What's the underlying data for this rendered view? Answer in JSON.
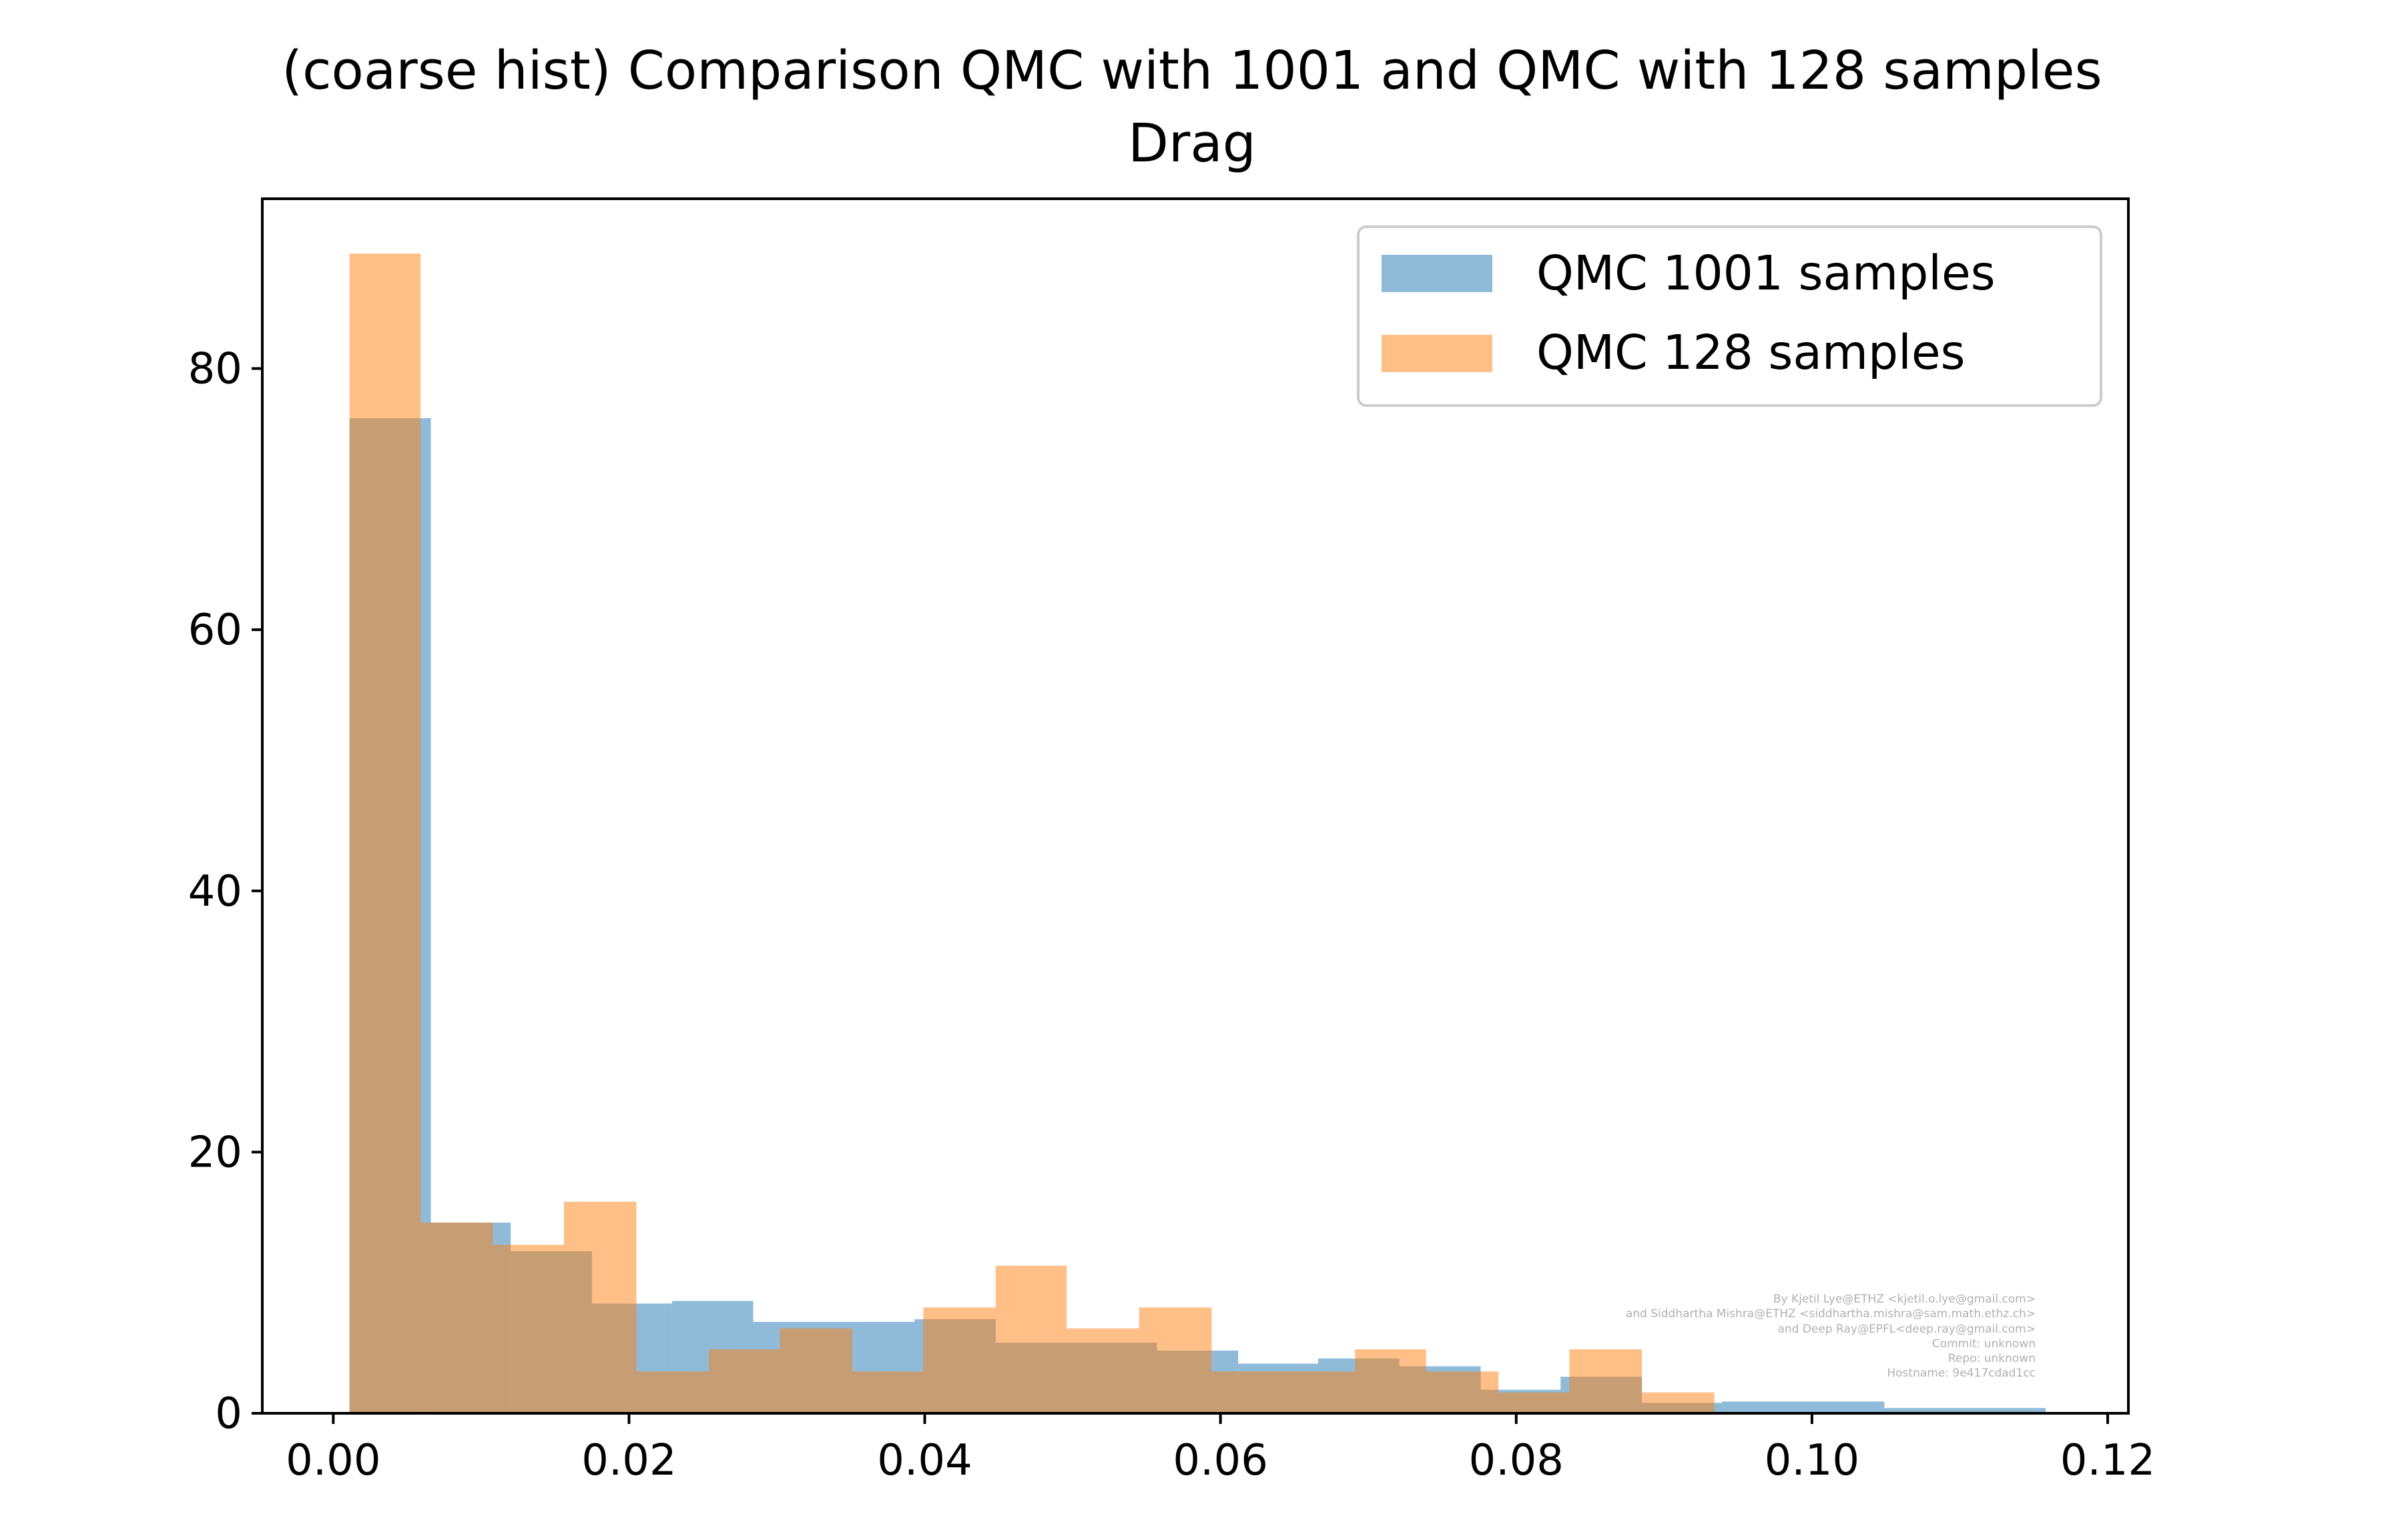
{
  "chart_data": {
    "type": "bar",
    "subtype": "overlaid-histogram",
    "title": "(coarse hist) Comparison QMC with 1001 and QMC with 128 samples",
    "subtitle": "Drag",
    "xlabel": "",
    "ylabel": "",
    "xlim": [
      -0.0048,
      0.1214
    ],
    "ylim": [
      0,
      93
    ],
    "xticks": [
      0.0,
      0.02,
      0.04,
      0.06,
      0.08,
      0.1,
      0.12
    ],
    "xtick_labels": [
      "0.00",
      "0.02",
      "0.04",
      "0.06",
      "0.08",
      "0.10",
      "0.12"
    ],
    "yticks": [
      0,
      20,
      40,
      60,
      80
    ],
    "ytick_labels": [
      "0",
      "20",
      "40",
      "60",
      "80"
    ],
    "grid": false,
    "legend_position": "upper right",
    "series": [
      {
        "name": "QMC 1001 samples",
        "color": "#1f77b4",
        "opacity": 0.5,
        "bin_edges": [
          0.0011,
          0.0066,
          0.012,
          0.0175,
          0.0229,
          0.0284,
          0.0339,
          0.0393,
          0.0448,
          0.0503,
          0.0557,
          0.0612,
          0.0666,
          0.0721,
          0.0776,
          0.083,
          0.0885,
          0.0939,
          0.0994,
          0.1049,
          0.1103,
          0.1158
        ],
        "values": [
          76.2,
          14.6,
          12.4,
          8.4,
          8.6,
          7.0,
          7.0,
          7.2,
          5.4,
          5.4,
          4.8,
          3.8,
          4.2,
          3.6,
          1.8,
          2.8,
          0.8,
          0.9,
          0.9,
          0.4,
          0.4
        ]
      },
      {
        "name": "QMC 128 samples",
        "color": "#ff7f0e",
        "opacity": 0.5,
        "bin_edges": [
          0.0011,
          0.0059,
          0.0108,
          0.0156,
          0.0205,
          0.0254,
          0.0302,
          0.0351,
          0.0399,
          0.0448,
          0.0496,
          0.0545,
          0.0594,
          0.0642,
          0.0691,
          0.0739,
          0.0788,
          0.0836,
          0.0885,
          0.0934,
          0.0982
        ],
        "values": [
          88.8,
          14.6,
          12.9,
          16.2,
          3.2,
          4.9,
          6.5,
          3.2,
          8.1,
          11.3,
          6.5,
          8.1,
          3.2,
          3.2,
          4.9,
          3.2,
          1.6,
          4.9,
          1.6,
          0.0
        ]
      }
    ],
    "annotations": [
      "By Kjetil Lye@ETHZ <kjetil.o.lye@gmail.com>",
      "and Siddhartha Mishra@ETHZ <siddhartha.mishra@sam.math.ethz.ch>",
      "and Deep Ray@EPFL<deep.ray@gmail.com>",
      "Commit: unknown",
      "Repo: unknown",
      "Hostname: 9e417cdad1cc"
    ]
  }
}
